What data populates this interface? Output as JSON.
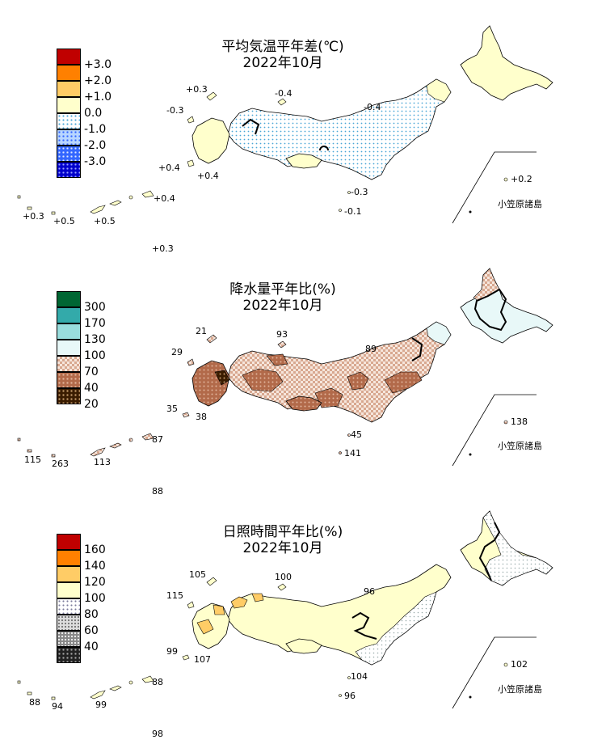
{
  "panels": [
    {
      "title_line1": "平均気温平年差(℃)",
      "title_line2": "2022年10月",
      "legend": [
        {
          "label": "+3.0",
          "color": "#c00000",
          "pattern": "solid"
        },
        {
          "label": "+2.0",
          "color": "#ff8000",
          "pattern": "solid"
        },
        {
          "label": "+1.0",
          "color": "#ffcc66",
          "pattern": "solid"
        },
        {
          "label": "0.0",
          "color": "#ffffcc",
          "pattern": "solid"
        },
        {
          "label": "-1.0",
          "color": "#9fd5ff",
          "pattern": "dots"
        },
        {
          "label": "-2.0",
          "color": "#3366ff",
          "pattern": "dots"
        },
        {
          "label": "-3.0",
          "color": "#0000cc",
          "pattern": "dots"
        },
        {
          "label": "",
          "color": "#0000cc",
          "pattern": "dots"
        }
      ],
      "station_labels": [
        "+0.3",
        "-0.4",
        "-0.3",
        "-0.4",
        "+0.4",
        "+0.4",
        "-0.3",
        "-0.1",
        "+0.2",
        "+0.4",
        "+0.3",
        "+0.5",
        "+0.5",
        "+0.3"
      ],
      "region_label": "小笠原諸島"
    },
    {
      "title_line1": "降水量平年比(%)",
      "title_line2": "2022年10月",
      "legend": [
        {
          "label": "300",
          "color": "#006633",
          "pattern": "solid"
        },
        {
          "label": "170",
          "color": "#33aaaa",
          "pattern": "solid"
        },
        {
          "label": "130",
          "color": "#99dddd",
          "pattern": "solid"
        },
        {
          "label": "100",
          "color": "#e8f8f8",
          "pattern": "solid"
        },
        {
          "label": "70",
          "color": "#e8cdbd",
          "pattern": "check"
        },
        {
          "label": "40",
          "color": "#b26a4a",
          "pattern": "dots"
        },
        {
          "label": "20",
          "color": "#4a2600",
          "pattern": "dots"
        },
        {
          "label": "",
          "color": "#4a2600",
          "pattern": "dots"
        }
      ],
      "station_labels": [
        "21",
        "93",
        "29",
        "89",
        "35",
        "38",
        "45",
        "141",
        "138",
        "87",
        "115",
        "263",
        "113",
        "88"
      ],
      "region_label": "小笠原諸島"
    },
    {
      "title_line1": "日照時間平年比(%)",
      "title_line2": "2022年10月",
      "legend": [
        {
          "label": "160",
          "color": "#c00000",
          "pattern": "solid"
        },
        {
          "label": "140",
          "color": "#ff8000",
          "pattern": "solid"
        },
        {
          "label": "120",
          "color": "#ffcc66",
          "pattern": "solid"
        },
        {
          "label": "100",
          "color": "#ffffcc",
          "pattern": "solid"
        },
        {
          "label": "80",
          "color": "#dddddd",
          "pattern": "dots"
        },
        {
          "label": "60",
          "color": "#888888",
          "pattern": "dots"
        },
        {
          "label": "40",
          "color": "#333333",
          "pattern": "dots"
        },
        {
          "label": "",
          "color": "#333333",
          "pattern": "dots"
        }
      ],
      "station_labels": [
        "105",
        "100",
        "115",
        "96",
        "99",
        "107",
        "104",
        "96",
        "102",
        "88",
        "88",
        "94",
        "99",
        "98"
      ],
      "region_label": "小笠原諸島"
    }
  ]
}
